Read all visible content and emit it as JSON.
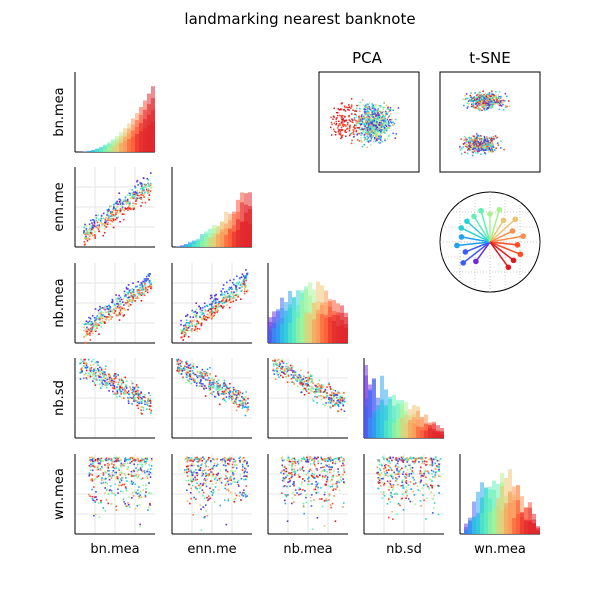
{
  "chart_data": {
    "type": "scatter-matrix",
    "title": "landmarking nearest banknote",
    "variables": [
      "bn.mea",
      "enn.me",
      "nb.mea",
      "nb.sd",
      "wn.mea"
    ],
    "panels": {
      "pca_title": "PCA",
      "tsne_title": "t-SNE"
    },
    "color_palette": [
      "#6a2bd9",
      "#3b5bf6",
      "#1fa2f0",
      "#27d1d6",
      "#5ef0b4",
      "#a6f38d",
      "#f0c36a",
      "#ff8d4d",
      "#ff4a26",
      "#e0191f"
    ],
    "radial_legend_spokes": 19,
    "grid": true
  }
}
